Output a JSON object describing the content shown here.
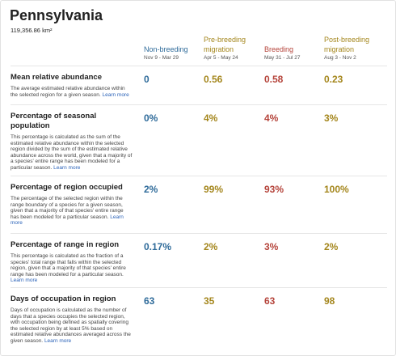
{
  "header": {
    "title": "Pennsylvania",
    "area": "119,356.86 km²"
  },
  "columns": [
    {
      "name": "Non-breeding",
      "dates": "Nov 9 - Mar 29",
      "color": "#2f6b9a"
    },
    {
      "name": "Pre-breeding migration",
      "dates": "Apr 5 - May 24",
      "color": "#a4861c"
    },
    {
      "name": "Breeding",
      "dates": "May 31 - Jul 27",
      "color": "#b5443b"
    },
    {
      "name": "Post-breeding migration",
      "dates": "Aug 3 - Nov 2",
      "color": "#a4861c"
    }
  ],
  "link": "Learn more",
  "rows": [
    {
      "label": "Mean relative abundance",
      "description": "The average estimated relative abundance within the selected region for a given season.",
      "values": [
        "0",
        "0.56",
        "0.58",
        "0.23"
      ]
    },
    {
      "label": "Percentage of seasonal population",
      "description": "This percentage is calculated as the sum of the estimated relative abundance within the selected region divided by the sum of the estimated relative abundance across the world, given that a majority of a species' entire range has been modeled for a particular season.",
      "values": [
        "0%",
        "4%",
        "4%",
        "3%"
      ]
    },
    {
      "label": "Percentage of region occupied",
      "description": "The percentage of the selected region within the range boundary of a species for a given season, given that a majority of that species' entire range has been modeled for a particular season.",
      "values": [
        "2%",
        "99%",
        "93%",
        "100%"
      ]
    },
    {
      "label": "Percentage of range in region",
      "description": "This percentage is calculated as the fraction of a species' total range that falls within the selected region, given that a majority of that species' entire range has been modeled for a particular season.",
      "values": [
        "0.17%",
        "2%",
        "3%",
        "2%"
      ]
    },
    {
      "label": "Days of occupation in region",
      "description": "Days of occupation is calculated as the number of days that a species occupies the selected region, with occupation being defined as spatially covering the selected region by at least 5% based on estimated relative abundances averaged across the given season.",
      "values": [
        "63",
        "35",
        "63",
        "98"
      ]
    }
  ]
}
